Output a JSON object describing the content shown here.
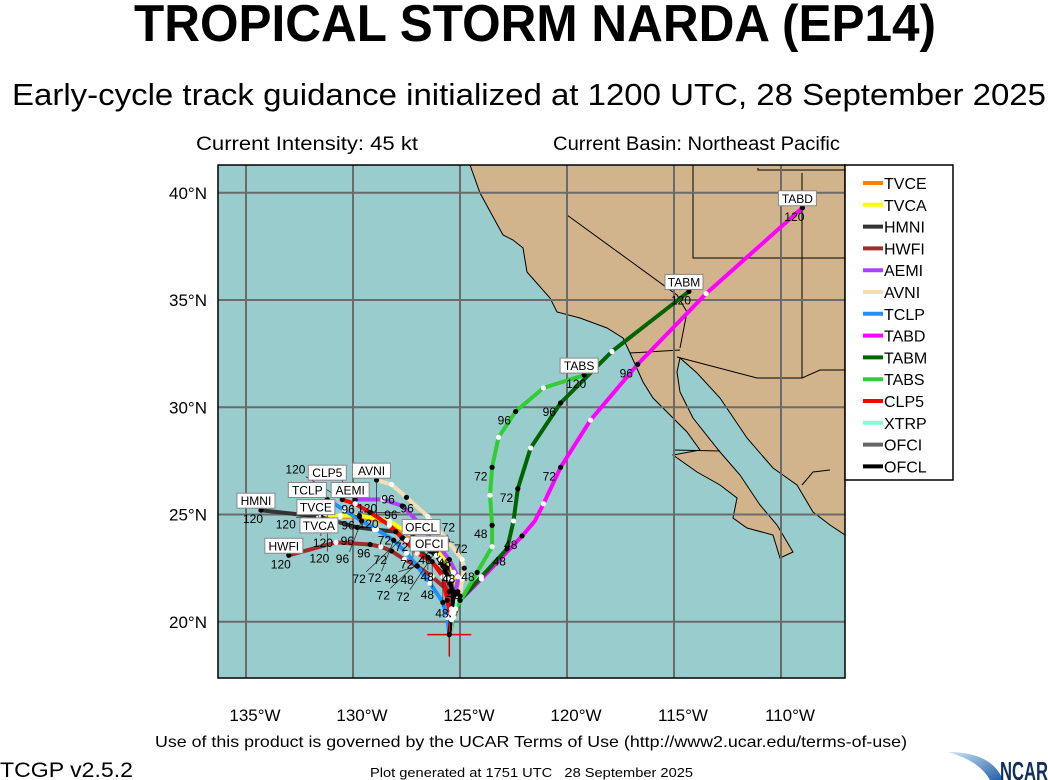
{
  "header": {
    "title": "TROPICAL STORM NARDA (EP14)",
    "subtitle": "Early-cycle track guidance initialized at 1200 UTC, 28 September 2025",
    "intensity": "Current Intensity: 45 kt",
    "basin": "Current Basin: Northeast Pacific"
  },
  "chart_data": {
    "type": "map-track",
    "lon_range": [
      -136.3,
      -107.0
    ],
    "lat_range": [
      17.3,
      41.3
    ],
    "grid": true,
    "legend_position": "right",
    "lat_ticks": [
      {
        "value": 40,
        "label": "40°N"
      },
      {
        "value": 35,
        "label": "35°N"
      },
      {
        "value": 30,
        "label": "30°N"
      },
      {
        "value": 25,
        "label": "25°N"
      },
      {
        "value": 20,
        "label": "20°N"
      }
    ],
    "lon_ticks": [
      {
        "value": -135,
        "label": "135°W"
      },
      {
        "value": -130,
        "label": "130°W"
      },
      {
        "value": -125,
        "label": "125°W"
      },
      {
        "value": -120,
        "label": "120°W"
      },
      {
        "value": -115,
        "label": "115°W"
      },
      {
        "value": -110,
        "label": "110°W"
      }
    ],
    "current_position": {
      "lon": -125.5,
      "lat": 19.4
    },
    "colors": {
      "ocean": "#99cdcd",
      "land": "#d2b48c",
      "grid": "#6b6b6b"
    },
    "tracks": [
      {
        "name": "TVCE",
        "color": "#ff8000",
        "label": "TVCE",
        "points": [
          [
            -125.5,
            19.4,
            0
          ],
          [
            -125.4,
            20.4,
            12
          ],
          [
            -125.3,
            21.4,
            24
          ],
          [
            -125.3,
            22.3,
            36
          ],
          [
            -126.1,
            23.3,
            48
          ],
          [
            -126.7,
            23.6,
            60
          ],
          [
            -127.2,
            23.9,
            72
          ],
          [
            -128.3,
            24.6,
            84
          ],
          [
            -129.7,
            24.9,
            96
          ],
          [
            -130.6,
            24.9,
            108
          ],
          [
            -131.5,
            24.9,
            120
          ]
        ]
      },
      {
        "name": "TVCA",
        "color": "#ffff00",
        "label": "TVCA",
        "points": [
          [
            -125.5,
            19.4,
            0
          ],
          [
            -125.4,
            20.4,
            12
          ],
          [
            -125.3,
            21.4,
            24
          ],
          [
            -125.3,
            22.3,
            36
          ],
          [
            -126.1,
            23.4,
            48
          ],
          [
            -126.7,
            23.7,
            60
          ],
          [
            -127.2,
            24.0,
            72
          ],
          [
            -128.3,
            24.7,
            84
          ],
          [
            -129.7,
            24.95,
            96
          ],
          [
            -130.6,
            24.95,
            108
          ],
          [
            -131.6,
            24.95,
            120
          ]
        ]
      },
      {
        "name": "HMNI",
        "color": "#333333",
        "label": "HMNI",
        "points": [
          [
            -125.5,
            19.4,
            0
          ],
          [
            -125.4,
            20.6,
            12
          ],
          [
            -125.3,
            21.3,
            24
          ],
          [
            -125.6,
            22.0,
            36
          ],
          [
            -126.5,
            23.0,
            48
          ],
          [
            -127.5,
            23.8,
            60
          ],
          [
            -128.0,
            24.2,
            72
          ],
          [
            -129.0,
            24.3,
            84
          ],
          [
            -129.8,
            24.4,
            96
          ],
          [
            -131.6,
            24.9,
            108
          ],
          [
            -134.3,
            25.2,
            120
          ]
        ]
      },
      {
        "name": "HWFI",
        "color": "#a52a2a",
        "label": "HWFI",
        "points": [
          [
            -125.5,
            19.4,
            0
          ],
          [
            -125.4,
            20.4,
            12
          ],
          [
            -125.5,
            21.4,
            24
          ],
          [
            -126.3,
            22.1,
            36
          ],
          [
            -127.0,
            22.6,
            48
          ],
          [
            -127.6,
            22.9,
            60
          ],
          [
            -128.2,
            23.3,
            72
          ],
          [
            -128.7,
            23.5,
            84
          ],
          [
            -129.2,
            23.6,
            96
          ],
          [
            -130.8,
            23.7,
            108
          ],
          [
            -133.0,
            23.1,
            120
          ]
        ]
      },
      {
        "name": "AEMI",
        "color": "#b040ff",
        "label": "AEMI",
        "points": [
          [
            -125.5,
            19.4,
            0
          ],
          [
            -125.3,
            20.4,
            12
          ],
          [
            -125.2,
            21.3,
            24
          ],
          [
            -125.1,
            22.1,
            36
          ],
          [
            -125.5,
            22.9,
            48
          ],
          [
            -125.9,
            23.4,
            60
          ],
          [
            -126.3,
            23.8,
            72
          ],
          [
            -126.9,
            24.6,
            84
          ],
          [
            -127.7,
            25.4,
            96
          ],
          [
            -128.6,
            25.7,
            108
          ],
          [
            -129.9,
            25.7,
            120
          ]
        ]
      },
      {
        "name": "AVNI",
        "color": "#f5deb3",
        "label": "AVNI",
        "points": [
          [
            -125.5,
            19.4,
            0
          ],
          [
            -125.3,
            20.4,
            12
          ],
          [
            -125.0,
            21.2,
            24
          ],
          [
            -124.9,
            22.0,
            36
          ],
          [
            -124.8,
            22.5,
            48
          ],
          [
            -124.9,
            22.9,
            60
          ],
          [
            -125.6,
            23.8,
            72
          ],
          [
            -126.5,
            24.9,
            84
          ],
          [
            -127.5,
            25.8,
            96
          ],
          [
            -128.2,
            26.4,
            108
          ],
          [
            -128.9,
            26.6,
            120
          ]
        ]
      },
      {
        "name": "TCLP",
        "color": "#1e90ff",
        "label": "TCLP",
        "points": [
          [
            -125.5,
            19.4,
            0
          ],
          [
            -125.6,
            20.2,
            12
          ],
          [
            -125.8,
            20.9,
            24
          ],
          [
            -126.4,
            21.8,
            36
          ],
          [
            -127.0,
            22.6,
            48
          ],
          [
            -127.5,
            23.2,
            60
          ],
          [
            -128.1,
            23.8,
            72
          ],
          [
            -128.9,
            24.3,
            84
          ],
          [
            -129.6,
            24.7,
            96
          ],
          [
            -130.4,
            25.2,
            108
          ],
          [
            -131.2,
            25.7,
            120
          ]
        ]
      },
      {
        "name": "TABD",
        "color": "#ff00ff",
        "label": "TABD",
        "points": [
          [
            -125.5,
            19.4,
            0
          ],
          [
            -125.3,
            20.2,
            12
          ],
          [
            -125.0,
            21.0,
            24
          ],
          [
            -124.0,
            22.0,
            36
          ],
          [
            -122.1,
            24.0,
            48
          ],
          [
            -121.5,
            24.7,
            null
          ],
          [
            -121.1,
            25.5,
            60
          ],
          [
            -120.3,
            27.2,
            72
          ],
          [
            -118.9,
            29.4,
            84
          ],
          [
            -116.7,
            32.0,
            96
          ],
          [
            -113.5,
            35.3,
            108
          ],
          [
            -109.0,
            39.3,
            120
          ]
        ]
      },
      {
        "name": "TABM",
        "color": "#006400",
        "label": "TABM",
        "points": [
          [
            -125.5,
            19.4,
            0
          ],
          [
            -125.3,
            20.2,
            12
          ],
          [
            -125.0,
            21.0,
            24
          ],
          [
            -124.0,
            22.1,
            36
          ],
          [
            -122.8,
            23.4,
            48
          ],
          [
            -122.5,
            24.7,
            60
          ],
          [
            -122.3,
            26.2,
            72
          ],
          [
            -121.7,
            28.1,
            84
          ],
          [
            -120.3,
            30.2,
            96
          ],
          [
            -117.9,
            32.6,
            108
          ],
          [
            -114.3,
            35.4,
            120
          ]
        ]
      },
      {
        "name": "TABS",
        "color": "#32cd32",
        "label": "TABS",
        "points": [
          [
            -125.5,
            19.4,
            0
          ],
          [
            -125.2,
            20.6,
            12
          ],
          [
            -124.2,
            22.3,
            24
          ],
          [
            -123.5,
            23.5,
            36
          ],
          [
            -123.5,
            24.5,
            48
          ],
          [
            -123.6,
            25.9,
            60
          ],
          [
            -123.5,
            27.2,
            72
          ],
          [
            -123.2,
            28.6,
            84
          ],
          [
            -122.4,
            29.8,
            96
          ],
          [
            -121.1,
            30.9,
            108
          ],
          [
            -119.2,
            31.5,
            120
          ]
        ]
      },
      {
        "name": "CLP5",
        "color": "#ff0000",
        "label": "CLP5",
        "points": [
          [
            -125.5,
            19.4,
            0
          ],
          [
            -125.4,
            20.1,
            12
          ],
          [
            -125.6,
            21.0,
            24
          ],
          [
            -125.8,
            22.1,
            36
          ],
          [
            -126.3,
            22.8,
            48
          ],
          [
            -127.0,
            23.2,
            60
          ],
          [
            -127.7,
            23.9,
            72
          ],
          [
            -128.3,
            24.5,
            84
          ],
          [
            -129.2,
            25.1,
            96
          ],
          [
            -129.9,
            25.5,
            108
          ],
          [
            -130.5,
            25.7,
            120
          ]
        ]
      },
      {
        "name": "XTRP",
        "color": "#7fffd4",
        "label": "",
        "points": [
          [
            -125.5,
            19.4,
            0
          ],
          [
            -125.3,
            20.5,
            12
          ],
          [
            -125.1,
            21.4,
            24
          ]
        ]
      },
      {
        "name": "OFCI",
        "color": "#666666",
        "label": "OFCI",
        "points": [
          [
            -125.5,
            19.4,
            0
          ],
          [
            -125.4,
            20.4,
            12
          ],
          [
            -125.3,
            21.2,
            24
          ],
          [
            -125.4,
            22.0,
            36
          ],
          [
            -125.6,
            22.5,
            48
          ],
          [
            -125.9,
            22.9,
            60
          ],
          [
            -126.2,
            23.2,
            72
          ]
        ]
      },
      {
        "name": "OFCL",
        "color": "#000000",
        "label": "OFCL",
        "points": [
          [
            -125.5,
            19.4,
            0
          ],
          [
            -125.4,
            20.4,
            12
          ],
          [
            -125.3,
            21.2,
            24
          ],
          [
            -125.5,
            22.0,
            36
          ],
          [
            -125.8,
            22.6,
            48
          ],
          [
            -126.1,
            23.1,
            60
          ],
          [
            -126.4,
            23.3,
            72
          ]
        ]
      }
    ],
    "legend": [
      "TVCE",
      "TVCA",
      "HMNI",
      "HWFI",
      "AEMI",
      "AVNI",
      "TCLP",
      "TABD",
      "TABM",
      "TABS",
      "CLP5",
      "XTRP",
      "OFCI",
      "OFCL"
    ]
  },
  "footer": {
    "terms": "Use of this product is governed by the UCAR Terms of Use (http://www2.ucar.edu/terms-of-use)",
    "version": "TCGP v2.5.2",
    "generated": "Plot generated at 1751 UTC   28 September 2025",
    "logo_text": "NCAR"
  }
}
